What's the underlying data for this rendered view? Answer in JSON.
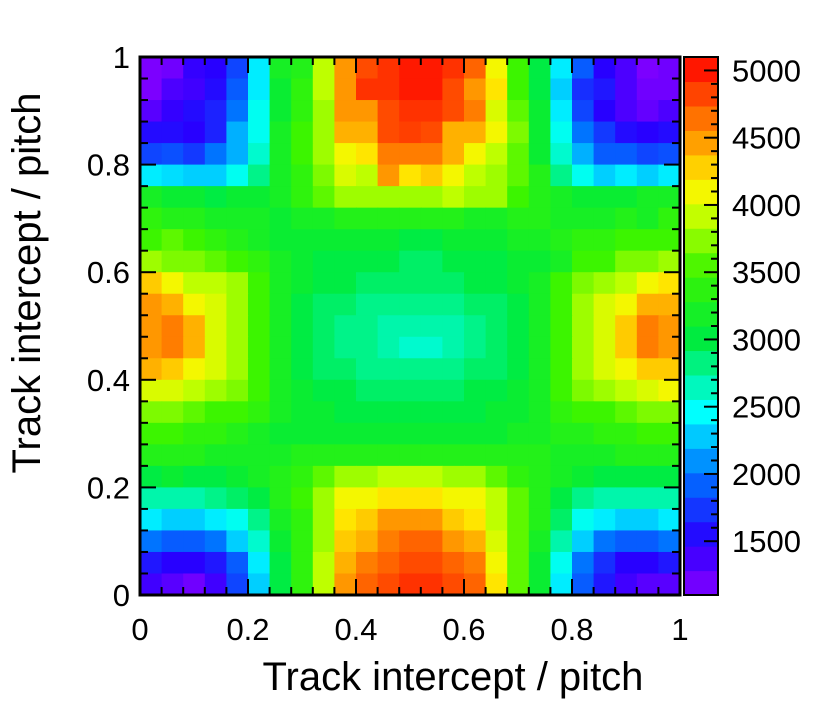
{
  "chart_data": {
    "type": "heatmap",
    "title": "",
    "xlabel": "Track intercept / pitch",
    "ylabel": "Track intercept / pitch",
    "xlim": [
      0,
      1
    ],
    "ylim": [
      0,
      1
    ],
    "x_ticks": [
      "0",
      "0.2",
      "0.4",
      "0.6",
      "0.8",
      "1"
    ],
    "y_ticks": [
      "0",
      "0.2",
      "0.4",
      "0.6",
      "0.8",
      "1"
    ],
    "colorbar": {
      "range": [
        1100,
        5100
      ],
      "ticks": [
        "1500",
        "2000",
        "2500",
        "3000",
        "3500",
        "4000",
        "4500",
        "5000"
      ],
      "palette": "rainbow (violet-blue-cyan-green-yellow-orange-red)"
    },
    "grid": {
      "nx": 25,
      "ny": 25,
      "bin_width": 0.04
    },
    "values": [
      [
        1150,
        1200,
        1450,
        1500,
        1800,
        2400,
        3200,
        3300,
        3900,
        4500,
        4800,
        4900,
        5000,
        5000,
        4900,
        4700,
        4100,
        3500,
        3000,
        2400,
        1900,
        1500,
        1350,
        1150,
        1200
      ],
      [
        1150,
        1350,
        1400,
        1550,
        1900,
        2400,
        3100,
        3400,
        3900,
        4500,
        4900,
        4900,
        5000,
        5000,
        4800,
        4500,
        4200,
        3500,
        3000,
        2300,
        1700,
        1600,
        1350,
        1200,
        1200
      ],
      [
        1300,
        1450,
        1550,
        1650,
        2000,
        2500,
        3100,
        3400,
        3800,
        4500,
        4500,
        4800,
        4900,
        4900,
        4800,
        4600,
        4000,
        3600,
        3100,
        2400,
        1800,
        1500,
        1350,
        1250,
        1350
      ],
      [
        1550,
        1550,
        1500,
        1650,
        2200,
        2500,
        3200,
        3500,
        3800,
        4400,
        4400,
        4800,
        4850,
        4800,
        4400,
        4400,
        4100,
        3700,
        3100,
        2500,
        2000,
        1750,
        1550,
        1500,
        1550
      ],
      [
        1800,
        1850,
        1750,
        2000,
        2200,
        2600,
        3200,
        3500,
        3800,
        4100,
        4200,
        4600,
        4600,
        4600,
        4400,
        4100,
        3900,
        3600,
        3100,
        2600,
        2200,
        1900,
        1900,
        1800,
        1850
      ],
      [
        2400,
        2350,
        2300,
        2300,
        2500,
        2800,
        3200,
        3400,
        3700,
        4000,
        3900,
        4500,
        4200,
        4300,
        4100,
        3900,
        3800,
        3600,
        3300,
        2800,
        2500,
        2300,
        2400,
        2300,
        2400
      ],
      [
        3200,
        3100,
        3100,
        3000,
        3100,
        3100,
        3200,
        3400,
        3600,
        3800,
        3800,
        3800,
        3800,
        3800,
        3900,
        3800,
        3800,
        3500,
        3300,
        3200,
        3100,
        3100,
        3100,
        3200,
        3200
      ],
      [
        3400,
        3300,
        3300,
        3200,
        3200,
        3200,
        3100,
        3200,
        3200,
        3300,
        3300,
        3300,
        3300,
        3300,
        3300,
        3200,
        3200,
        3300,
        3300,
        3200,
        3200,
        3200,
        3300,
        3200,
        3400
      ],
      [
        3500,
        3600,
        3500,
        3400,
        3300,
        3200,
        3100,
        3100,
        3100,
        3100,
        3100,
        3100,
        3000,
        3000,
        3100,
        3100,
        3100,
        3200,
        3200,
        3300,
        3400,
        3400,
        3500,
        3500,
        3500
      ],
      [
        3800,
        3700,
        3700,
        3600,
        3500,
        3400,
        3200,
        3100,
        3000,
        3000,
        3000,
        3000,
        2900,
        2900,
        3000,
        3000,
        3000,
        3100,
        3100,
        3200,
        3500,
        3500,
        3700,
        3700,
        3800
      ],
      [
        4300,
        4100,
        3900,
        3900,
        3800,
        3500,
        3200,
        3100,
        3000,
        3000,
        2900,
        2900,
        2900,
        2900,
        2900,
        3000,
        3000,
        3100,
        3200,
        3500,
        3700,
        3800,
        3900,
        4100,
        4200
      ],
      [
        4500,
        4400,
        4100,
        4000,
        3800,
        3500,
        3200,
        3000,
        2900,
        2900,
        2800,
        2800,
        2800,
        2800,
        2800,
        2900,
        2900,
        3000,
        3200,
        3500,
        3800,
        4000,
        4100,
        4400,
        4400
      ],
      [
        4500,
        4600,
        4400,
        4000,
        3800,
        3500,
        3200,
        3000,
        2900,
        2800,
        2800,
        2700,
        2700,
        2700,
        2700,
        2800,
        2900,
        3000,
        3200,
        3500,
        3800,
        4000,
        4300,
        4600,
        4500
      ],
      [
        4500,
        4600,
        4400,
        4000,
        3800,
        3500,
        3200,
        3000,
        2900,
        2800,
        2800,
        2700,
        2600,
        2600,
        2700,
        2800,
        2900,
        3000,
        3200,
        3500,
        3800,
        4000,
        4300,
        4600,
        4500
      ],
      [
        4400,
        4300,
        4100,
        4000,
        3800,
        3500,
        3200,
        3000,
        2900,
        2900,
        2800,
        2800,
        2800,
        2800,
        2800,
        2900,
        2900,
        3000,
        3200,
        3500,
        3800,
        4000,
        4100,
        4300,
        4300
      ],
      [
        4000,
        4000,
        3900,
        3800,
        3700,
        3500,
        3200,
        3100,
        3000,
        3000,
        2900,
        2900,
        2900,
        2900,
        2900,
        3000,
        3000,
        3100,
        3200,
        3500,
        3700,
        3800,
        3900,
        4000,
        4100
      ],
      [
        3700,
        3700,
        3600,
        3500,
        3500,
        3400,
        3200,
        3100,
        3100,
        3000,
        3000,
        3000,
        3000,
        3000,
        3000,
        3000,
        3100,
        3100,
        3200,
        3400,
        3500,
        3500,
        3600,
        3700,
        3700
      ],
      [
        3500,
        3500,
        3400,
        3400,
        3300,
        3200,
        3100,
        3100,
        3100,
        3100,
        3100,
        3100,
        3100,
        3100,
        3100,
        3100,
        3100,
        3200,
        3200,
        3300,
        3300,
        3400,
        3400,
        3500,
        3500
      ],
      [
        3300,
        3300,
        3300,
        3200,
        3200,
        3200,
        3200,
        3300,
        3300,
        3300,
        3300,
        3300,
        3300,
        3300,
        3300,
        3300,
        3300,
        3300,
        3300,
        3200,
        3200,
        3200,
        3300,
        3300,
        3300
      ],
      [
        3000,
        3100,
        3000,
        3000,
        3100,
        3200,
        3300,
        3400,
        3600,
        3800,
        3800,
        3900,
        3900,
        3900,
        3800,
        3800,
        3600,
        3400,
        3300,
        3200,
        3100,
        3000,
        3000,
        3000,
        3000
      ],
      [
        2700,
        2700,
        2700,
        2800,
        2900,
        3000,
        3300,
        3500,
        3800,
        4100,
        4100,
        4200,
        4200,
        4200,
        4100,
        4100,
        3900,
        3600,
        3300,
        3000,
        2800,
        2700,
        2700,
        2700,
        2700
      ],
      [
        2400,
        2300,
        2300,
        2400,
        2500,
        2800,
        3200,
        3400,
        3800,
        4200,
        4300,
        4500,
        4500,
        4500,
        4300,
        4200,
        3900,
        3600,
        3300,
        2900,
        2500,
        2400,
        2300,
        2300,
        2400
      ],
      [
        2000,
        1900,
        1900,
        2000,
        2300,
        2600,
        3100,
        3400,
        3800,
        4300,
        4400,
        4600,
        4700,
        4700,
        4500,
        4400,
        4000,
        3600,
        3200,
        2700,
        2300,
        2000,
        1900,
        1900,
        2000
      ],
      [
        1600,
        1500,
        1500,
        1600,
        1900,
        2400,
        3000,
        3400,
        3900,
        4400,
        4600,
        4700,
        4800,
        4800,
        4700,
        4600,
        4100,
        3600,
        3100,
        2500,
        2000,
        1700,
        1500,
        1500,
        1600
      ],
      [
        1400,
        1300,
        1200,
        1400,
        1800,
        2300,
        3000,
        3400,
        3900,
        4500,
        4700,
        4800,
        4900,
        4900,
        4800,
        4700,
        4200,
        3600,
        3100,
        2400,
        1900,
        1600,
        1400,
        1300,
        1300
      ]
    ]
  }
}
